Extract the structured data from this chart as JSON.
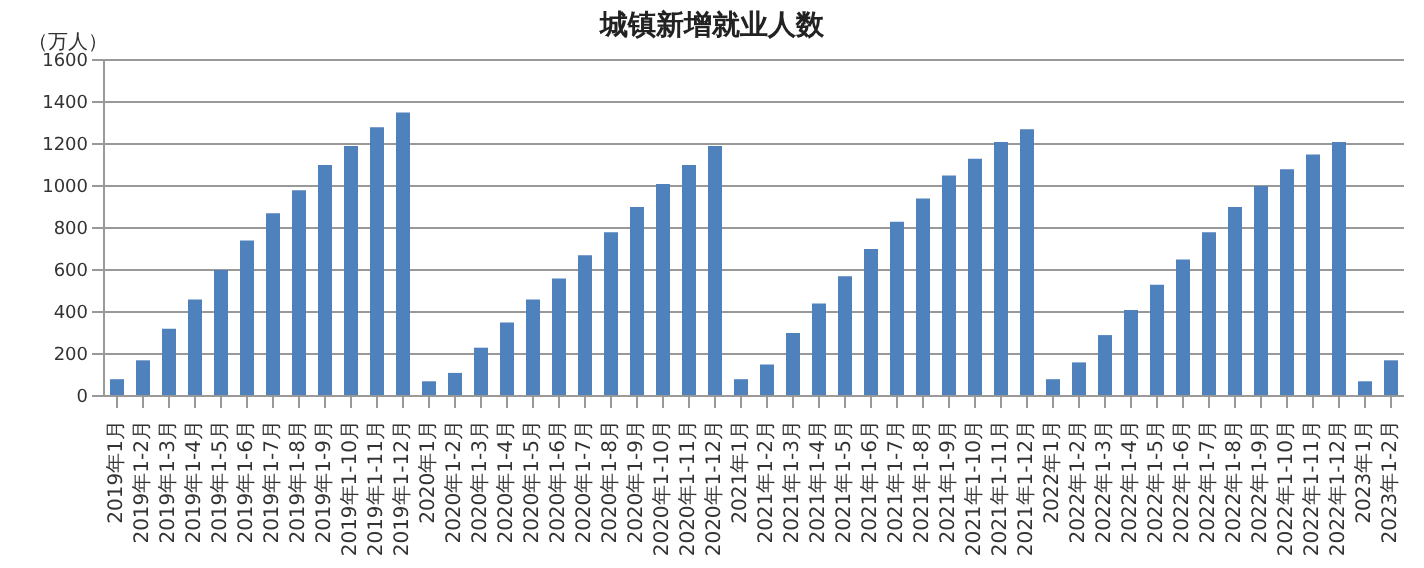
{
  "chart_data": {
    "type": "bar",
    "title": "城镇新增就业人数",
    "ylabel": "（万人）",
    "categories": [
      "2019年1月",
      "2019年1-2月",
      "2019年1-3月",
      "2019年1-4月",
      "2019年1-5月",
      "2019年1-6月",
      "2019年1-7月",
      "2019年1-8月",
      "2019年1-9月",
      "2019年1-10月",
      "2019年1-11月",
      "2019年1-12月",
      "2020年1月",
      "2020年1-2月",
      "2020年1-3月",
      "2020年1-4月",
      "2020年1-5月",
      "2020年1-6月",
      "2020年1-7月",
      "2020年1-8月",
      "2020年1-9月",
      "2020年1-10月",
      "2020年1-11月",
      "2020年1-12月",
      "2021年1月",
      "2021年1-2月",
      "2021年1-3月",
      "2021年1-4月",
      "2021年1-5月",
      "2021年1-6月",
      "2021年1-7月",
      "2021年1-8月",
      "2021年1-9月",
      "2021年1-10月",
      "2021年1-11月",
      "2021年1-12月",
      "2022年1月",
      "2022年1-2月",
      "2022年1-3月",
      "2022年1-4月",
      "2022年1-5月",
      "2022年1-6月",
      "2022年1-7月",
      "2022年1-8月",
      "2022年1-9月",
      "2022年1-10月",
      "2022年1-11月",
      "2022年1-12月",
      "2023年1月",
      "2023年1-2月"
    ],
    "values": [
      80,
      170,
      320,
      460,
      600,
      740,
      870,
      980,
      1100,
      1190,
      1280,
      1350,
      70,
      110,
      230,
      350,
      460,
      560,
      670,
      780,
      900,
      1010,
      1100,
      1190,
      80,
      150,
      300,
      440,
      570,
      700,
      830,
      940,
      1050,
      1130,
      1210,
      1270,
      80,
      160,
      290,
      410,
      530,
      650,
      780,
      900,
      1000,
      1080,
      1150,
      1210,
      70,
      170
    ],
    "color": "#4f81bd",
    "ylim": [
      0,
      1600
    ],
    "yticks": [
      0,
      200,
      400,
      600,
      800,
      1000,
      1200,
      1400,
      1600
    ],
    "grid": "y",
    "legend": false
  }
}
